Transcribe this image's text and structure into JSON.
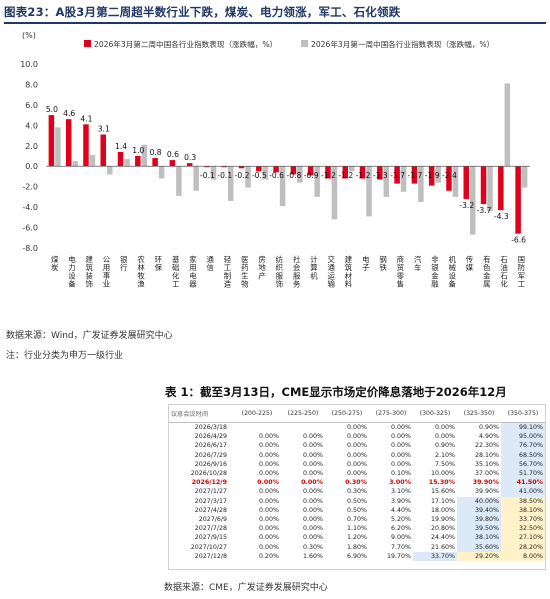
{
  "figure_title": "图表23：A股3月第二周超半数行业下跌，煤炭、电力领涨，军工、石化领跌",
  "chart_data": {
    "type": "bar",
    "unit_label": "(%)",
    "ylim": [
      -8,
      10
    ],
    "yticks": [
      "10.0",
      "8.0",
      "6.0",
      "4.0",
      "2.0",
      "0.0",
      "-2.0",
      "-4.0",
      "-6.0",
      "-8.0"
    ],
    "categories": [
      "煤炭",
      "电力设备",
      "建筑装饰",
      "公用事业",
      "银行",
      "农林牧渔",
      "环保",
      "基础化工",
      "家用电器",
      "通信",
      "轻工制造",
      "医药生物",
      "房地产",
      "纺织服饰",
      "社会服务",
      "计算机",
      "交通运输",
      "建筑材料",
      "电子",
      "钢铁",
      "商贸零售",
      "汽车",
      "非银金融",
      "机械设备",
      "传媒",
      "有色金属",
      "石油石化",
      "国防军工"
    ],
    "series": [
      {
        "name": "2026年3月第二周中国各行业指数表现（涨跌幅，%）",
        "color": "#e0001b",
        "values": [
          5.0,
          4.6,
          4.1,
          3.1,
          1.4,
          1.0,
          0.8,
          0.6,
          0.3,
          -0.1,
          -0.1,
          -0.2,
          -0.5,
          -0.6,
          -0.8,
          -0.9,
          -1.2,
          -1.2,
          -1.2,
          -1.3,
          -1.7,
          -1.7,
          -1.9,
          -2.4,
          -3.2,
          -3.7,
          -4.3,
          -6.6
        ]
      },
      {
        "name": "2026年3月第一周中国各行业指数表现（涨跌幅，%）",
        "color": "#bfbfbf",
        "values": [
          3.8,
          0.5,
          1.1,
          -0.8,
          0.7,
          2.1,
          -1.2,
          -2.9,
          -2.4,
          -1.3,
          -3.4,
          -2.1,
          -1.3,
          -3.9,
          -1.6,
          -3.0,
          -5.2,
          -0.5,
          -4.9,
          -3.0,
          -2.5,
          -3.5,
          -1.6,
          -3.0,
          -6.7,
          -4.4,
          8.1,
          -2.1
        ]
      }
    ]
  },
  "source_1": "数据来源：Wind，广发证券发展研究中心",
  "note_1": "注：行业分类为申万一级行业",
  "table_title": "表 1：截至3月13日，CME显示市场定价降息落地于2026年12月",
  "table": {
    "header": [
      "议息会议时间",
      "(200-225)",
      "(225-250)",
      "(250-275)",
      "(275-300)",
      "(300-325)",
      "(325-350)",
      "(350-375)"
    ],
    "rows": [
      [
        "2026/3/18",
        "",
        "",
        "0.00%",
        "0.00%",
        "0.00%",
        "0.90%",
        "99.10%"
      ],
      [
        "2026/4/29",
        "0.00%",
        "0.00%",
        "0.00%",
        "0.00%",
        "0.00%",
        "4.90%",
        "95.00%"
      ],
      [
        "2026/6/17",
        "0.00%",
        "0.00%",
        "0.00%",
        "0.00%",
        "0.90%",
        "22.30%",
        "76.70%"
      ],
      [
        "2026/7/29",
        "0.00%",
        "0.00%",
        "0.00%",
        "0.00%",
        "2.10%",
        "28.10%",
        "68.50%"
      ],
      [
        "2026/9/16",
        "0.00%",
        "0.00%",
        "0.00%",
        "0.00%",
        "7.50%",
        "35.10%",
        "56.70%"
      ],
      [
        "2026/10/28",
        "0.00%",
        "0.00%",
        "0.00%",
        "0.10%",
        "10.00%",
        "37.00%",
        "51.70%"
      ],
      [
        "2026/12/9",
        "0.00%",
        "0.00%",
        "0.30%",
        "3.00%",
        "15.30%",
        "39.90%",
        "41.50%"
      ],
      [
        "2027/1/27",
        "0.00%",
        "0.00%",
        "0.30%",
        "3.10%",
        "15.60%",
        "39.90%",
        "41.00%"
      ],
      [
        "2027/3/17",
        "0.00%",
        "0.00%",
        "0.50%",
        "3.90%",
        "17.10%",
        "40.00%",
        "38.50%"
      ],
      [
        "2027/4/28",
        "0.00%",
        "0.00%",
        "0.50%",
        "4.40%",
        "18.00%",
        "39.40%",
        "38.10%"
      ],
      [
        "2027/6/9",
        "0.00%",
        "0.00%",
        "0.70%",
        "5.20%",
        "19.90%",
        "39.80%",
        "33.70%"
      ],
      [
        "2027/7/28",
        "0.00%",
        "0.00%",
        "1.10%",
        "6.20%",
        "20.80%",
        "39.50%",
        "32.50%"
      ],
      [
        "2027/9/15",
        "0.00%",
        "0.00%",
        "1.20%",
        "9.00%",
        "24.40%",
        "38.10%",
        "27.10%"
      ],
      [
        "2027/10/27",
        "0.00%",
        "0.30%",
        "1.80%",
        "7.70%",
        "21.60%",
        "35.60%",
        "28.20%"
      ],
      [
        "2027/12/8",
        "0.20%",
        "1.60%",
        "6.90%",
        "19.70%",
        "33.70%",
        "29.20%",
        "8.00%"
      ]
    ],
    "highlight_row": 6,
    "shading": {
      "blue": [
        [
          0,
          7
        ],
        [
          1,
          7
        ],
        [
          2,
          7
        ],
        [
          3,
          7
        ],
        [
          4,
          7
        ],
        [
          5,
          7
        ],
        [
          6,
          7
        ],
        [
          7,
          7
        ],
        [
          8,
          6
        ],
        [
          9,
          6
        ],
        [
          10,
          6
        ],
        [
          11,
          6
        ],
        [
          12,
          6
        ],
        [
          13,
          6
        ],
        [
          14,
          5
        ]
      ],
      "yellow": [
        [
          8,
          7
        ],
        [
          9,
          7
        ],
        [
          10,
          7
        ],
        [
          11,
          7
        ],
        [
          12,
          7
        ],
        [
          13,
          7
        ],
        [
          14,
          6
        ],
        [
          14,
          7
        ]
      ]
    }
  },
  "source_2": "数据来源：CME，广发证券发展研究中心"
}
